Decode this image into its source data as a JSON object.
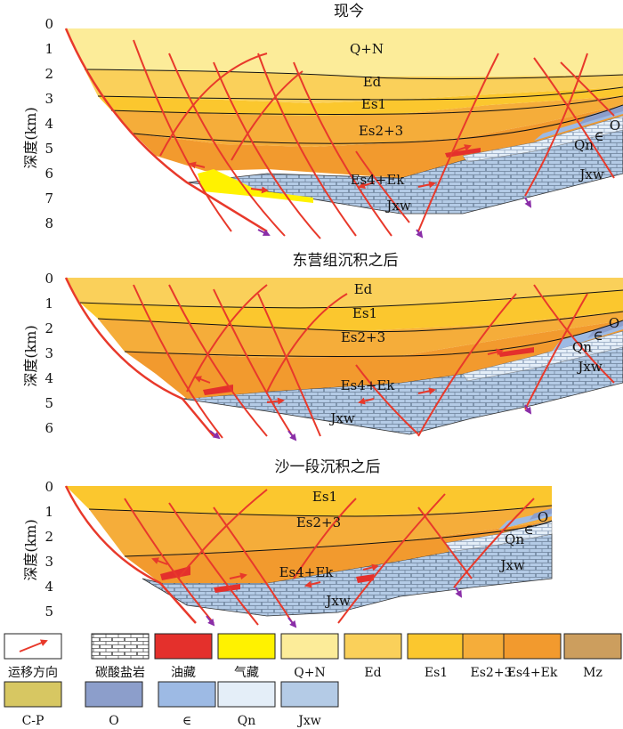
{
  "y_label": "深度(km)",
  "panels": [
    {
      "title": "现今",
      "ticks": [
        "0",
        "1",
        "2",
        "3",
        "4",
        "5",
        "6",
        "7",
        "8"
      ],
      "units": [
        {
          "text": "Q+N"
        },
        {
          "text": "Ed"
        },
        {
          "text": "Es1"
        },
        {
          "text": "Es2+3"
        },
        {
          "text": "Es4+Ek"
        },
        {
          "text": "Jxw"
        },
        {
          "text": "Qn"
        },
        {
          "text": "∈"
        },
        {
          "text": "O"
        },
        {
          "text": "Jxw"
        }
      ]
    },
    {
      "title": "东营组沉积之后",
      "ticks": [
        "0",
        "1",
        "2",
        "3",
        "4",
        "5",
        "6"
      ],
      "units": [
        {
          "text": "Ed"
        },
        {
          "text": "Es1"
        },
        {
          "text": "Es2+3"
        },
        {
          "text": "Es4+Ek"
        },
        {
          "text": "Jxw"
        },
        {
          "text": "Qn"
        },
        {
          "text": "∈"
        },
        {
          "text": "O"
        },
        {
          "text": "Jxw"
        }
      ]
    },
    {
      "title": "沙一段沉积之后",
      "ticks": [
        "0",
        "1",
        "2",
        "3",
        "4",
        "5"
      ],
      "units": [
        {
          "text": "Es1"
        },
        {
          "text": "Es2+3"
        },
        {
          "text": "Es4+Ek"
        },
        {
          "text": "Jxw"
        },
        {
          "text": "Qn"
        },
        {
          "text": "∈"
        },
        {
          "text": "O"
        },
        {
          "text": "Jxw"
        }
      ]
    }
  ],
  "legend": [
    {
      "key": "migration",
      "label": "运移方向",
      "color": "#ffffff"
    },
    {
      "key": "carbonate",
      "label": "碳酸盐岩",
      "color": "#ffffff"
    },
    {
      "key": "oil",
      "label": "油藏",
      "color": "#e4302c"
    },
    {
      "key": "gas",
      "label": "气藏",
      "color": "#fff200"
    },
    {
      "key": "qn_strat",
      "label": "Q+N",
      "color": "#fcec99"
    },
    {
      "key": "ed",
      "label": "Ed",
      "color": "#fad05a"
    },
    {
      "key": "es1",
      "label": "Es1",
      "color": "#fbc72e"
    },
    {
      "key": "es23",
      "label": "Es2+3",
      "color": "#f5ad3a"
    },
    {
      "key": "es4",
      "label": "Es4+Ek",
      "color": "#f29a2e"
    },
    {
      "key": "mz",
      "label": "Mz",
      "color": "#cc9e5e"
    },
    {
      "key": "cp",
      "label": "C-P",
      "color": "#d7c762"
    },
    {
      "key": "o",
      "label": "O",
      "color": "#8c9ecb"
    },
    {
      "key": "cam",
      "label": "∈",
      "color": "#9dbae4"
    },
    {
      "key": "qn",
      "label": "Qn",
      "color": "#e4eef8"
    },
    {
      "key": "jxw",
      "label": "Jxw",
      "color": "#b4cbe6"
    }
  ],
  "colors": {
    "fault": "#e8392b",
    "oil": "#e4302c",
    "gas": "#fff200",
    "qn_strat": "#fcec99",
    "ed": "#fad05a",
    "es1": "#fbc72e",
    "es23": "#f5ad3a",
    "es4": "#f29a2e",
    "jxw": "#b4cbe6",
    "qn": "#e4eef8",
    "cam": "#9dbae4",
    "o": "#8c9ecb",
    "arrow_down": "#8a2ea8"
  }
}
